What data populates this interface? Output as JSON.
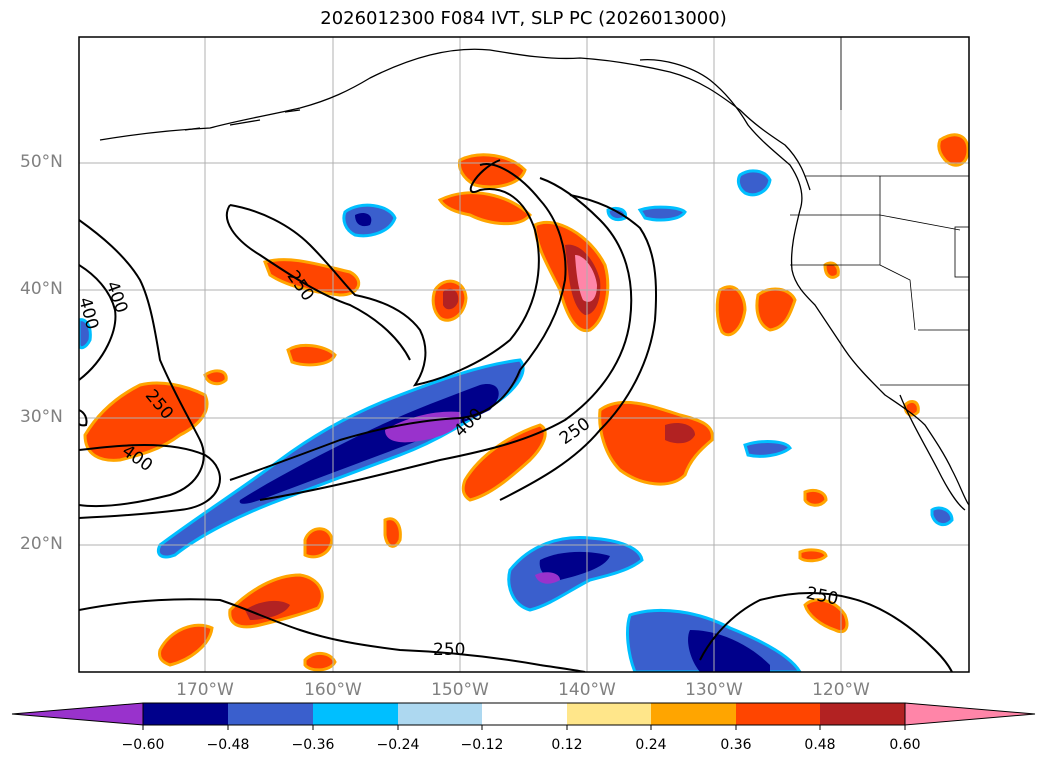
{
  "title": "2026012300 F084 IVT, SLP PC (2026013000)",
  "lat_labels": [
    "50°N",
    "40°N",
    "30°N",
    "20°N"
  ],
  "lon_labels": [
    "170°W",
    "160°W",
    "150°W",
    "140°W",
    "130°W",
    "120°W"
  ],
  "colorbar": {
    "ticks": [
      "−0.60",
      "−0.48",
      "−0.36",
      "−0.24",
      "−0.12",
      "0.12",
      "0.24",
      "0.36",
      "0.48",
      "0.60"
    ],
    "colors": [
      "#9932cc",
      "#00008b",
      "#3a5fcd",
      "#00bfff",
      "#add8f0",
      "#ffffff",
      "#ffe68a",
      "#ffa500",
      "#ff4500",
      "#b22222",
      "#ff85a8"
    ]
  },
  "contour_labels": [
    "400",
    "400",
    "250",
    "250",
    "400",
    "400",
    "250",
    "250",
    "250"
  ]
}
